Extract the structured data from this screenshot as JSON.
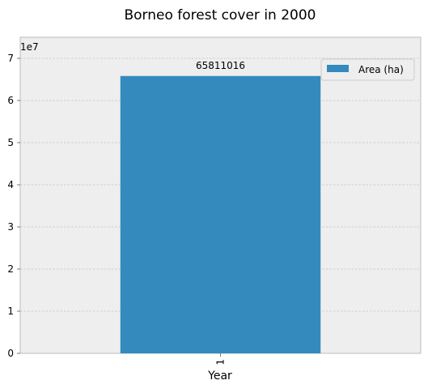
{
  "chart_data": {
    "type": "bar",
    "title": "Borneo forest cover in 2000",
    "xlabel": "Year",
    "ylabel": "",
    "categories": [
      "1"
    ],
    "series": [
      {
        "name": "Area (ha)",
        "values": [
          65811016
        ],
        "color": "#348abd"
      }
    ],
    "data_labels": [
      "65811016"
    ],
    "y_offset_label": "1e7",
    "y_scale": 10000000,
    "y_ticks": [
      0,
      1,
      2,
      3,
      4,
      5,
      6,
      7
    ],
    "ylim": [
      0,
      75000000
    ],
    "grid": true,
    "legend_position": "top-right",
    "x_tick_rotation": -90,
    "colors": {
      "plot_background": "#eeeeee",
      "grid": "#b0b0b0",
      "spine": "#bcbcbc",
      "bar": "#348abd"
    }
  }
}
